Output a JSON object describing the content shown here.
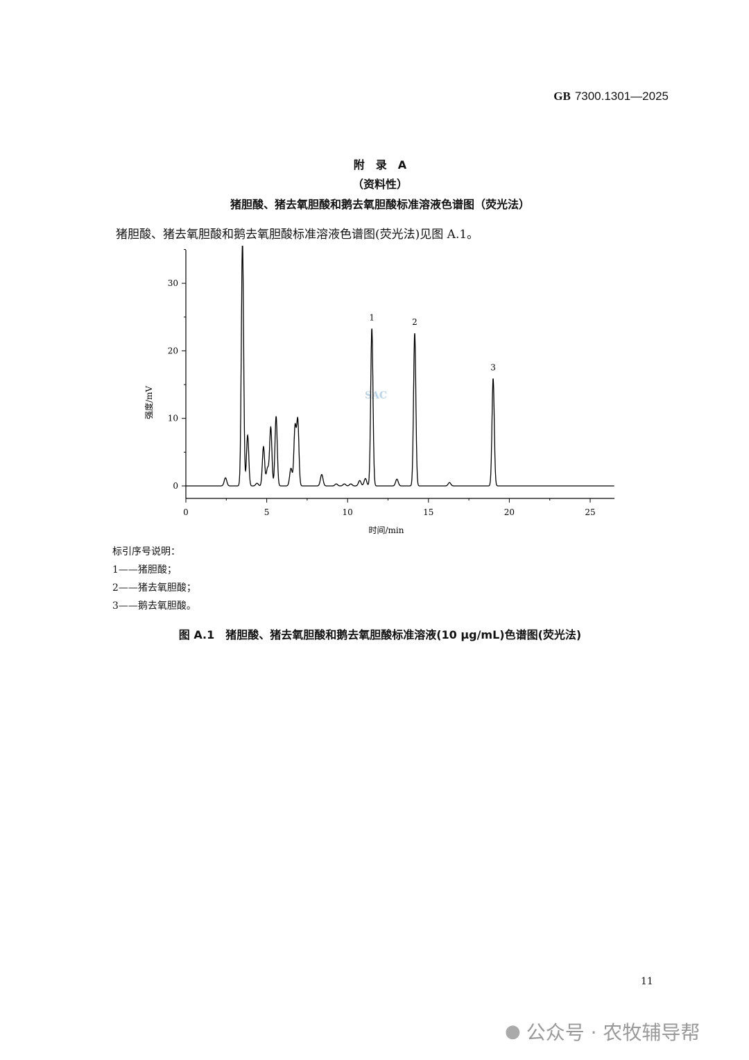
{
  "header": {
    "standard_prefix": "GB",
    "standard_number": "7300.1301—2025"
  },
  "appendix": {
    "title": "附　录　A",
    "type": "（资料性）",
    "subtitle": "猪胆酸、猪去氧胆酸和鹅去氧胆酸标准溶液色谱图（荧光法）"
  },
  "intro": "猪胆酸、猪去氧胆酸和鹅去氧胆酸标准溶液色谱图(荧光法)见图 A.1。",
  "chart_data": {
    "type": "line",
    "xlabel": "时间/min",
    "ylabel": "强度/mV",
    "xlim": [
      0,
      26.5
    ],
    "ylim": [
      -2,
      35
    ],
    "x_ticks": [
      0,
      5,
      10,
      15,
      20,
      25
    ],
    "y_ticks": [
      0,
      10,
      20,
      30
    ],
    "grid": false,
    "peaks": [
      {
        "t": 2.45,
        "h": 1.2
      },
      {
        "t": 3.5,
        "h": 36
      },
      {
        "t": 3.82,
        "h": 7.5
      },
      {
        "t": 4.4,
        "h": 0.4
      },
      {
        "t": 4.8,
        "h": 5.8
      },
      {
        "t": 5.05,
        "h": 2.6
      },
      {
        "t": 5.25,
        "h": 8.6
      },
      {
        "t": 5.58,
        "h": 10.3
      },
      {
        "t": 6.5,
        "h": 2.6
      },
      {
        "t": 6.75,
        "h": 8.6
      },
      {
        "t": 6.92,
        "h": 9.6
      },
      {
        "t": 8.4,
        "h": 1.7
      },
      {
        "t": 9.3,
        "h": 0.3
      },
      {
        "t": 9.8,
        "h": 0.3
      },
      {
        "t": 10.2,
        "h": 0.3
      },
      {
        "t": 10.75,
        "h": 0.8
      },
      {
        "t": 11.1,
        "h": 1.1
      },
      {
        "t": 11.5,
        "h": 23.3,
        "label": "1"
      },
      {
        "t": 13.05,
        "h": 1.0
      },
      {
        "t": 14.15,
        "h": 22.6,
        "label": "2"
      },
      {
        "t": 16.3,
        "h": 0.5
      },
      {
        "t": 19.0,
        "h": 15.9,
        "label": "3"
      }
    ],
    "watermark": "SAC"
  },
  "legend": {
    "title": "标引序号说明：",
    "items": [
      "1——猪胆酸；",
      "2——猪去氧胆酸；",
      "3——鹅去氧胆酸。"
    ]
  },
  "caption": "图 A.1　猪胆酸、猪去氧胆酸和鹅去氧胆酸标准溶液(10 μg/mL)色谱图(荧光法)",
  "page_number": "11",
  "wechat_watermark": "公众号 · 农牧辅导帮"
}
